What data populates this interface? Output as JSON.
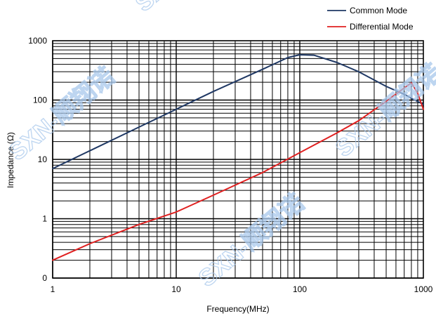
{
  "chart_data": {
    "type": "line",
    "xlabel": "Frequency(MHz)",
    "ylabel": "Impedance (Ω)",
    "x_scale": "log",
    "y_scale": "log",
    "xlim": [
      1,
      1000
    ],
    "ylim": [
      0.1,
      1000
    ],
    "x_ticks": [
      {
        "value": 1,
        "label": "1"
      },
      {
        "value": 10,
        "label": "10"
      },
      {
        "value": 100,
        "label": "100"
      },
      {
        "value": 1000,
        "label": "1000"
      }
    ],
    "y_ticks": [
      {
        "value": 0.1,
        "label": "0"
      },
      {
        "value": 1,
        "label": "1"
      },
      {
        "value": 10,
        "label": "10"
      },
      {
        "value": 100,
        "label": "100"
      },
      {
        "value": 1000,
        "label": "1000"
      }
    ],
    "grid": true,
    "legend_position": "top-right",
    "series": [
      {
        "name": "Common Mode",
        "color": "#1f3864",
        "points": [
          [
            1,
            7
          ],
          [
            2,
            14
          ],
          [
            5,
            35
          ],
          [
            10,
            70
          ],
          [
            20,
            140
          ],
          [
            50,
            330
          ],
          [
            80,
            520
          ],
          [
            100,
            580
          ],
          [
            130,
            570
          ],
          [
            200,
            430
          ],
          [
            300,
            300
          ],
          [
            500,
            170
          ],
          [
            700,
            125
          ],
          [
            850,
            100
          ],
          [
            1000,
            85
          ]
        ]
      },
      {
        "name": "Differential Mode",
        "color": "#e02020",
        "points": [
          [
            1,
            0.2
          ],
          [
            2,
            0.38
          ],
          [
            5,
            0.8
          ],
          [
            10,
            1.3
          ],
          [
            20,
            2.5
          ],
          [
            50,
            6
          ],
          [
            100,
            13
          ],
          [
            200,
            28
          ],
          [
            300,
            45
          ],
          [
            500,
            95
          ],
          [
            700,
            160
          ],
          [
            800,
            195
          ],
          [
            900,
            130
          ],
          [
            1000,
            70
          ]
        ]
      }
    ]
  },
  "watermarks": [
    "SXN-顺翔诺",
    "SXN-顺翔诺",
    "SXN-顺翔诺",
    "SXN-顺翔诺"
  ]
}
